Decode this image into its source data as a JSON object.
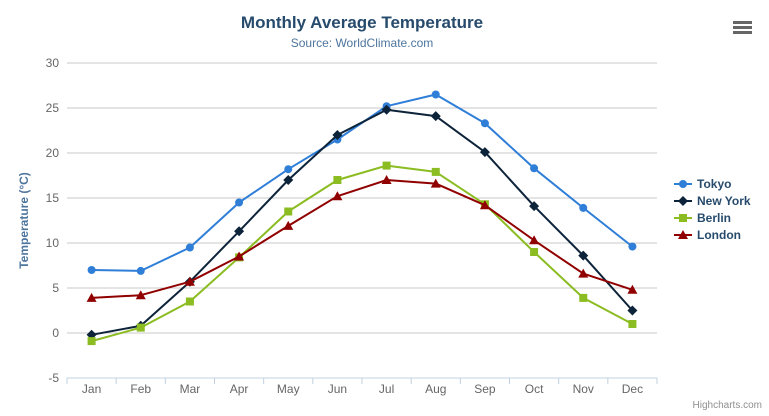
{
  "chart_data": {
    "type": "line",
    "title": "Monthly Average Temperature",
    "subtitle": "Source: WorldClimate.com",
    "categories": [
      "Jan",
      "Feb",
      "Mar",
      "Apr",
      "May",
      "Jun",
      "Jul",
      "Aug",
      "Sep",
      "Oct",
      "Nov",
      "Dec"
    ],
    "xlabel": "",
    "ylabel": "Temperature (°C)",
    "ylim": [
      -5,
      30
    ],
    "yticks": [
      -5,
      0,
      5,
      10,
      15,
      20,
      25,
      30
    ],
    "grid": true,
    "legend_position": "right",
    "series": [
      {
        "name": "Tokyo",
        "color": "#2f7ed8",
        "marker": "circle",
        "values": [
          7.0,
          6.9,
          9.5,
          14.5,
          18.2,
          21.5,
          25.2,
          26.5,
          23.3,
          18.3,
          13.9,
          9.6
        ]
      },
      {
        "name": "New York",
        "color": "#0d233a",
        "marker": "diamond",
        "values": [
          -0.2,
          0.8,
          5.7,
          11.3,
          17.0,
          22.0,
          24.8,
          24.1,
          20.1,
          14.1,
          8.6,
          2.5
        ]
      },
      {
        "name": "Berlin",
        "color": "#8bbc21",
        "marker": "square",
        "values": [
          -0.9,
          0.6,
          3.5,
          8.4,
          13.5,
          17.0,
          18.6,
          17.9,
          14.3,
          9.0,
          3.9,
          1.0
        ]
      },
      {
        "name": "London",
        "color": "#910000",
        "marker": "triangle",
        "values": [
          3.9,
          4.2,
          5.7,
          8.5,
          11.9,
          15.2,
          17.0,
          16.6,
          14.2,
          10.3,
          6.6,
          4.8
        ]
      }
    ]
  },
  "credit": {
    "label": "Highcharts.com"
  },
  "colors": {
    "title": "#274b6d",
    "subtitle": "#4d759e",
    "axis_title": "#4d759e",
    "tick_label": "#666666",
    "grid_line": "#c8c8c8",
    "axis_line": "#c0d0e0",
    "legend_text": "#274b6d",
    "credit_text": "#909090",
    "menu_icon": "#666666"
  }
}
